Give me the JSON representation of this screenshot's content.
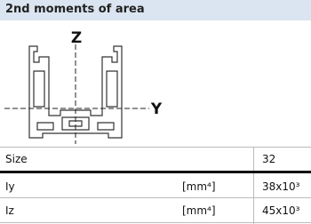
{
  "header": {
    "title": "2nd moments of area"
  },
  "drawing": {
    "z_label": "Z",
    "y_label": "Y"
  },
  "table": {
    "header": [
      "Size",
      "32"
    ],
    "rows": [
      [
        "Iy",
        "[mm⁴]",
        "38x10³"
      ],
      [
        "Iz",
        "[mm⁴]",
        "45x10³"
      ]
    ]
  }
}
